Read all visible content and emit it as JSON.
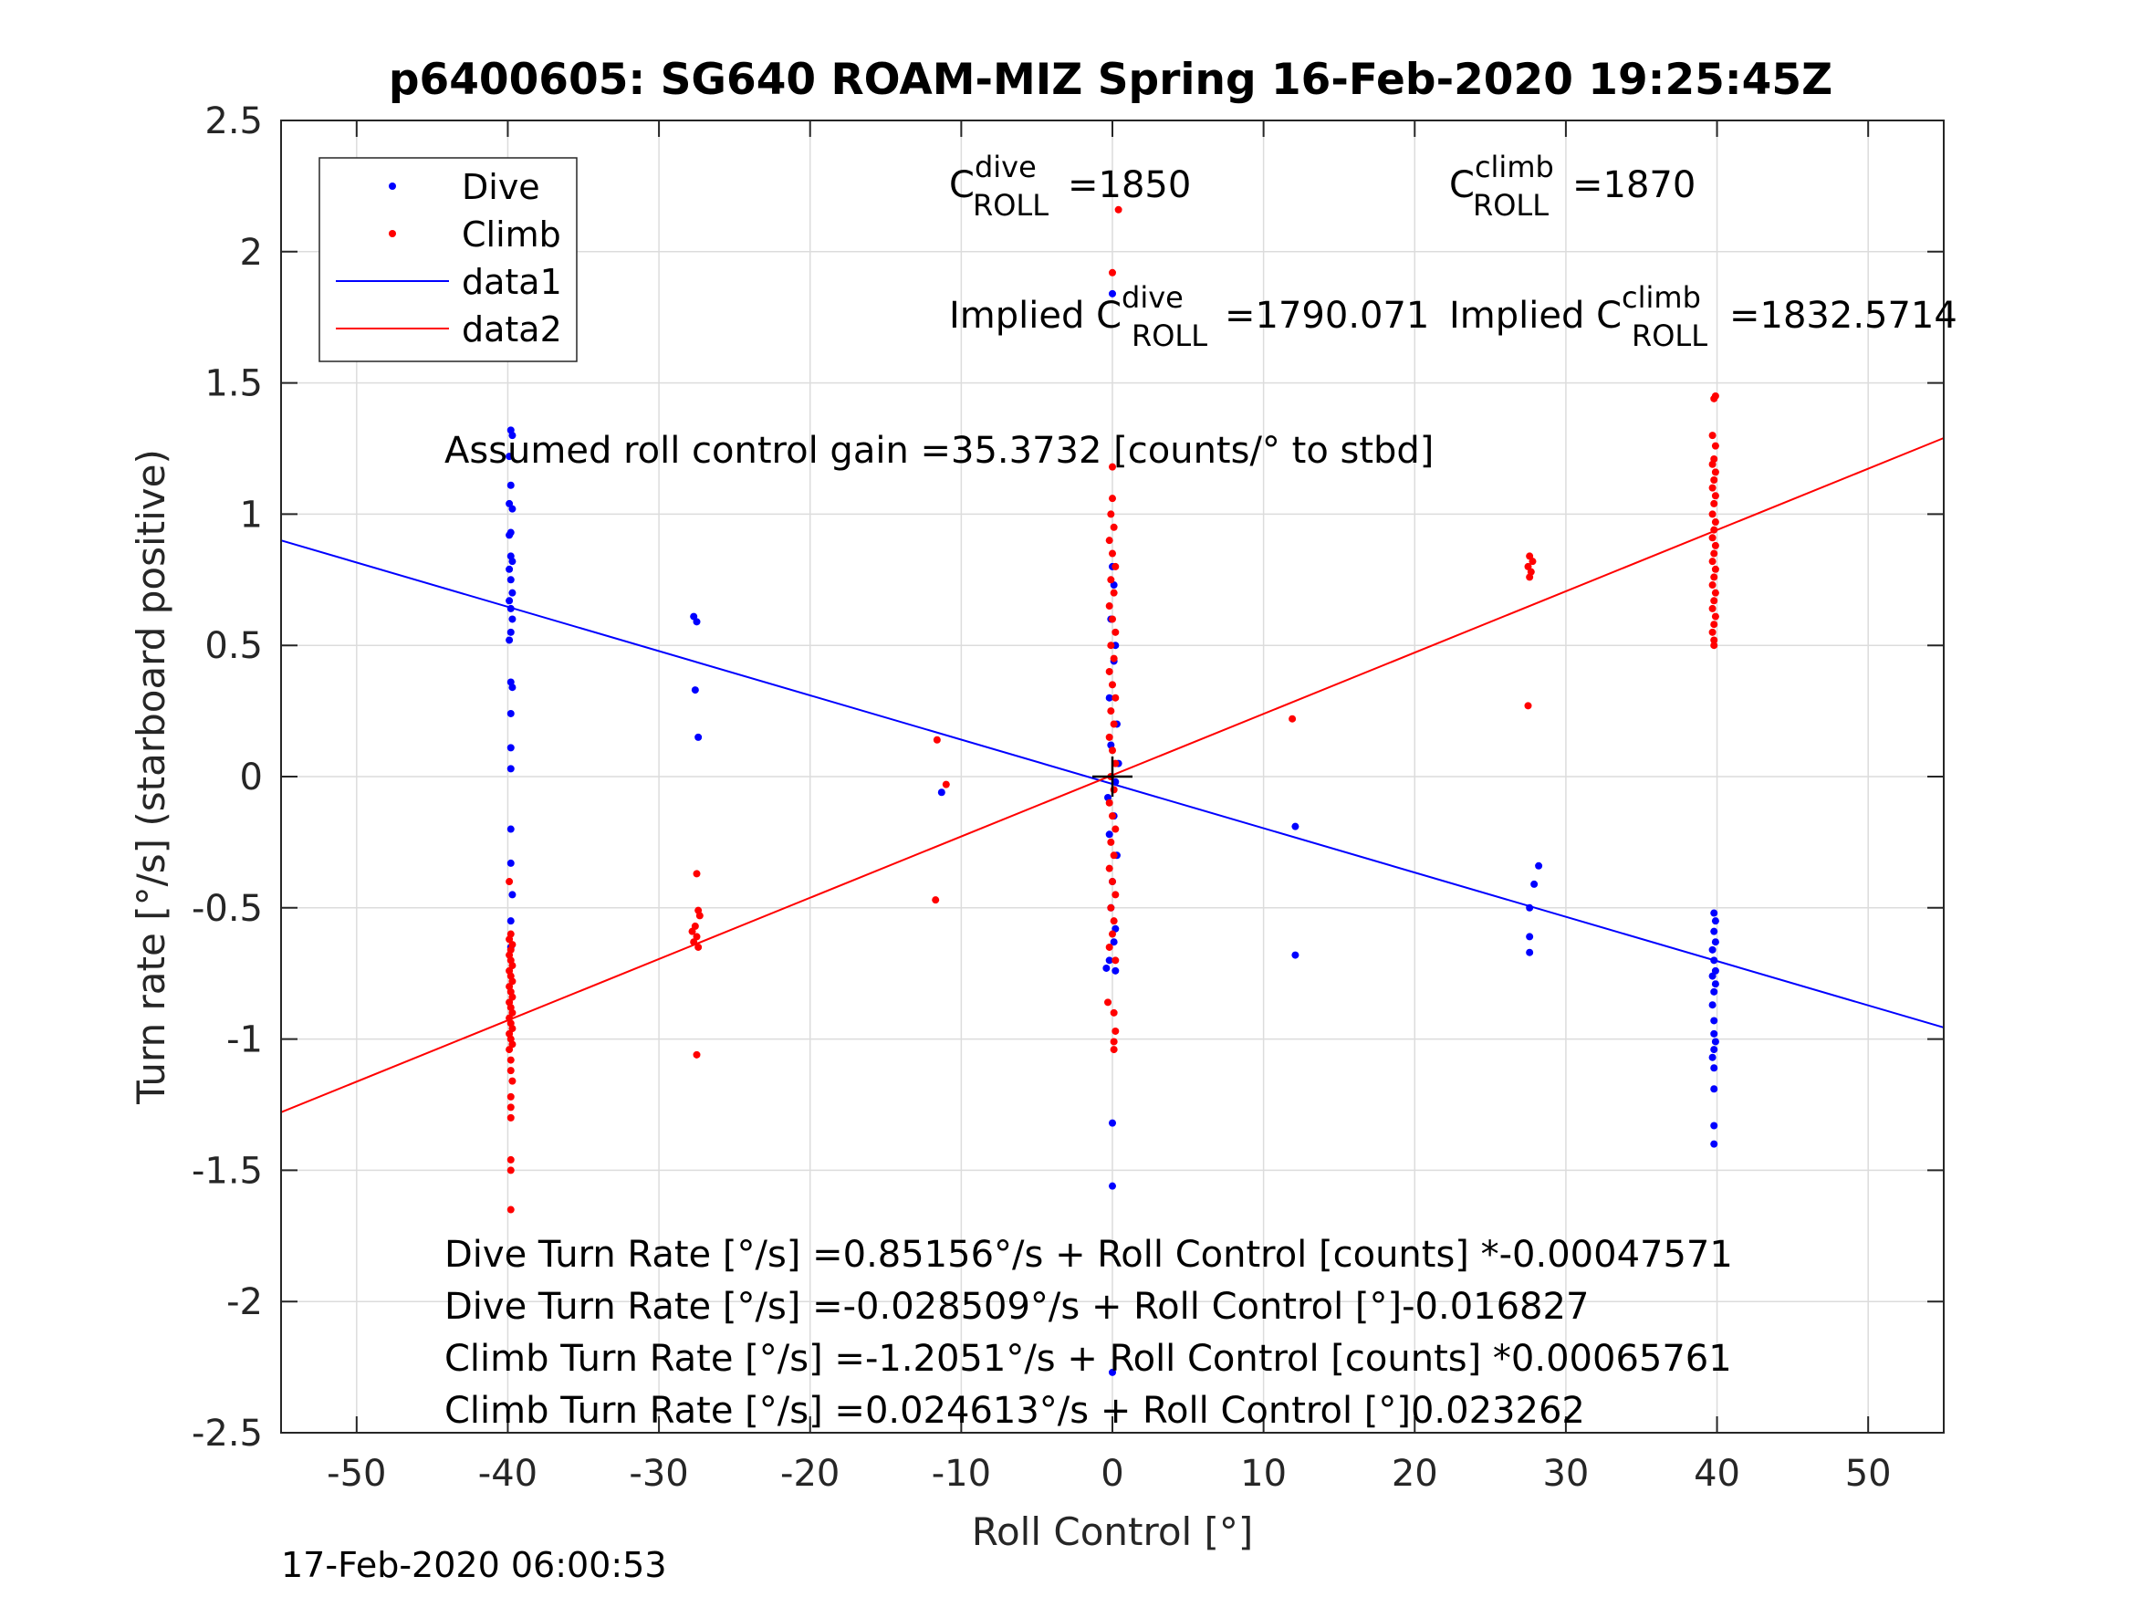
{
  "figure": {
    "title": "p6400605: SG640 ROAM-MIZ Spring 16-Feb-2020 19:25:45Z",
    "footer_timestamp": "17-Feb-2020 06:00:53"
  },
  "annotations": {
    "c_dive": {
      "prefix": "C",
      "sup": "dive",
      "sub": "ROLL",
      "value": "=1850"
    },
    "c_climb": {
      "prefix": "C",
      "sup": "climb",
      "sub": "ROLL",
      "value": "=1870"
    },
    "implied_dive": {
      "prefix": "Implied C",
      "sup": "dive",
      "sub": "ROLL",
      "value": "=1790.071"
    },
    "implied_climb": {
      "prefix": "Implied C",
      "sup": "climb",
      "sub": "ROLL",
      "value": "=1832.5714"
    },
    "gain": "Assumed roll control gain =35.3732 [counts/° to stbd]",
    "eq_lines": [
      "Dive Turn Rate [°/s] =0.85156°/s + Roll Control [counts] *-0.00047571",
      "Dive Turn Rate [°/s] =-0.028509°/s + Roll Control [°]-0.016827",
      "Climb Turn Rate [°/s] =-1.2051°/s + Roll Control [counts] *0.00065761",
      "Climb Turn Rate [°/s] =0.024613°/s + Roll Control [°]0.023262"
    ]
  },
  "chart_data": {
    "type": "scatter",
    "title": "p6400605: SG640 ROAM-MIZ Spring 16-Feb-2020 19:25:45Z",
    "xlabel": "Roll Control [°]",
    "ylabel": "Turn rate [°/s] (starboard positive)",
    "xlim": [
      -55,
      55
    ],
    "ylim": [
      -2.5,
      2.5
    ],
    "xticks": [
      -50,
      -40,
      -30,
      -20,
      -10,
      0,
      10,
      20,
      30,
      40,
      50
    ],
    "xtick_labels": [
      "-50",
      "-40",
      "-30",
      "-20",
      "-10",
      "0",
      "10",
      "20",
      "30",
      "40",
      "50"
    ],
    "yticks": [
      -2.5,
      -2,
      -1.5,
      -1,
      -0.5,
      0,
      0.5,
      1,
      1.5,
      2,
      2.5
    ],
    "ytick_labels": [
      "-2.5",
      "-2",
      "-1.5",
      "-1",
      "-0.5",
      "0",
      "0.5",
      "1",
      "1.5",
      "2",
      "2.5"
    ],
    "grid": true,
    "legend": {
      "placement": "top-left",
      "entries": [
        "Dive",
        "Climb",
        "data1",
        "data2"
      ]
    },
    "colors": {
      "dive": "#0000ff",
      "climb": "#ff0000",
      "axis": "#262626",
      "grid": "#dcdcdc",
      "marker": "#000000"
    },
    "series": [
      {
        "name": "Dive",
        "kind": "points",
        "points": [
          [
            -39.8,
            1.32
          ],
          [
            -39.7,
            1.3
          ],
          [
            -39.9,
            1.22
          ],
          [
            -39.8,
            1.11
          ],
          [
            -39.9,
            1.04
          ],
          [
            -39.7,
            1.02
          ],
          [
            -39.8,
            0.93
          ],
          [
            -39.9,
            0.92
          ],
          [
            -39.8,
            0.84
          ],
          [
            -39.7,
            0.82
          ],
          [
            -39.9,
            0.79
          ],
          [
            -39.8,
            0.75
          ],
          [
            -39.7,
            0.7
          ],
          [
            -39.9,
            0.67
          ],
          [
            -39.8,
            0.64
          ],
          [
            -39.7,
            0.6
          ],
          [
            -39.8,
            0.55
          ],
          [
            -39.9,
            0.52
          ],
          [
            -39.8,
            0.36
          ],
          [
            -39.7,
            0.34
          ],
          [
            -39.8,
            0.24
          ],
          [
            -39.8,
            0.11
          ],
          [
            -39.8,
            0.03
          ],
          [
            -39.8,
            -0.2
          ],
          [
            -39.8,
            -0.33
          ],
          [
            -39.7,
            -0.45
          ],
          [
            -39.8,
            -0.55
          ],
          [
            -39.8,
            -0.65
          ],
          [
            -27.7,
            0.61
          ],
          [
            -27.5,
            0.59
          ],
          [
            -27.6,
            0.33
          ],
          [
            -27.4,
            0.15
          ],
          [
            -11.3,
            -0.06
          ],
          [
            0.0,
            1.84
          ],
          [
            0.0,
            0.8
          ],
          [
            0.1,
            0.73
          ],
          [
            -0.1,
            0.6
          ],
          [
            0.2,
            0.5
          ],
          [
            0.1,
            0.44
          ],
          [
            -0.2,
            0.3
          ],
          [
            0.3,
            0.2
          ],
          [
            -0.1,
            0.12
          ],
          [
            0.4,
            0.05
          ],
          [
            0.2,
            -0.02
          ],
          [
            -0.3,
            -0.08
          ],
          [
            0.1,
            -0.15
          ],
          [
            -0.2,
            -0.22
          ],
          [
            0.3,
            -0.3
          ],
          [
            0.0,
            -0.4
          ],
          [
            -0.1,
            -0.5
          ],
          [
            0.2,
            -0.58
          ],
          [
            0.1,
            -0.63
          ],
          [
            -0.2,
            -0.7
          ],
          [
            0.2,
            -0.74
          ],
          [
            -0.4,
            -0.73
          ],
          [
            0.0,
            -1.32
          ],
          [
            0.0,
            -1.56
          ],
          [
            0.0,
            -2.27
          ],
          [
            12.1,
            -0.19
          ],
          [
            12.1,
            -0.68
          ],
          [
            28.2,
            -0.34
          ],
          [
            27.9,
            -0.41
          ],
          [
            27.6,
            -0.5
          ],
          [
            27.6,
            -0.61
          ],
          [
            27.6,
            -0.67
          ],
          [
            39.8,
            -0.52
          ],
          [
            39.9,
            -0.55
          ],
          [
            39.8,
            -0.59
          ],
          [
            39.9,
            -0.63
          ],
          [
            39.7,
            -0.66
          ],
          [
            39.8,
            -0.7
          ],
          [
            39.9,
            -0.74
          ],
          [
            39.7,
            -0.76
          ],
          [
            39.9,
            -0.79
          ],
          [
            39.8,
            -0.82
          ],
          [
            39.7,
            -0.87
          ],
          [
            39.8,
            -0.93
          ],
          [
            39.8,
            -0.98
          ],
          [
            39.9,
            -1.01
          ],
          [
            39.8,
            -1.04
          ],
          [
            39.7,
            -1.07
          ],
          [
            39.8,
            -1.11
          ],
          [
            39.8,
            -1.19
          ],
          [
            39.8,
            -1.33
          ],
          [
            39.8,
            -1.4
          ]
        ]
      },
      {
        "name": "Climb",
        "kind": "points",
        "points": [
          [
            -39.8,
            -0.6
          ],
          [
            -39.9,
            -0.62
          ],
          [
            -39.7,
            -0.64
          ],
          [
            -39.8,
            -0.66
          ],
          [
            -39.9,
            -0.68
          ],
          [
            -39.8,
            -0.7
          ],
          [
            -39.7,
            -0.72
          ],
          [
            -39.9,
            -0.74
          ],
          [
            -39.8,
            -0.76
          ],
          [
            -39.7,
            -0.78
          ],
          [
            -39.9,
            -0.8
          ],
          [
            -39.8,
            -0.82
          ],
          [
            -39.7,
            -0.84
          ],
          [
            -39.9,
            -0.86
          ],
          [
            -39.8,
            -0.88
          ],
          [
            -39.7,
            -0.9
          ],
          [
            -39.9,
            -0.92
          ],
          [
            -39.8,
            -0.94
          ],
          [
            -39.7,
            -0.96
          ],
          [
            -39.9,
            -0.98
          ],
          [
            -39.8,
            -1.0
          ],
          [
            -39.7,
            -1.02
          ],
          [
            -39.9,
            -1.04
          ],
          [
            -39.8,
            -1.08
          ],
          [
            -39.8,
            -1.12
          ],
          [
            -39.7,
            -1.16
          ],
          [
            -39.8,
            -1.22
          ],
          [
            -39.8,
            -1.26
          ],
          [
            -39.8,
            -1.3
          ],
          [
            -39.8,
            -1.46
          ],
          [
            -39.8,
            -1.5
          ],
          [
            -39.8,
            -1.65
          ],
          [
            -39.9,
            -0.4
          ],
          [
            -27.5,
            -0.37
          ],
          [
            -27.4,
            -0.51
          ],
          [
            -27.3,
            -0.53
          ],
          [
            -27.6,
            -0.57
          ],
          [
            -27.8,
            -0.59
          ],
          [
            -27.5,
            -0.61
          ],
          [
            -27.7,
            -0.63
          ],
          [
            -27.4,
            -0.65
          ],
          [
            -27.5,
            -1.06
          ],
          [
            -11.6,
            0.14
          ],
          [
            -11.7,
            -0.47
          ],
          [
            -11.0,
            -0.03
          ],
          [
            0.4,
            2.16
          ],
          [
            0.0,
            1.92
          ],
          [
            0.0,
            1.18
          ],
          [
            0.0,
            1.06
          ],
          [
            -0.1,
            1.0
          ],
          [
            0.1,
            0.95
          ],
          [
            -0.2,
            0.9
          ],
          [
            0.0,
            0.85
          ],
          [
            0.2,
            0.8
          ],
          [
            -0.1,
            0.75
          ],
          [
            0.1,
            0.7
          ],
          [
            -0.2,
            0.65
          ],
          [
            0.0,
            0.6
          ],
          [
            0.2,
            0.55
          ],
          [
            -0.1,
            0.5
          ],
          [
            0.1,
            0.45
          ],
          [
            -0.2,
            0.4
          ],
          [
            0.0,
            0.35
          ],
          [
            0.2,
            0.3
          ],
          [
            -0.1,
            0.25
          ],
          [
            0.1,
            0.2
          ],
          [
            -0.2,
            0.15
          ],
          [
            0.0,
            0.1
          ],
          [
            0.2,
            0.05
          ],
          [
            -0.1,
            0.0
          ],
          [
            0.1,
            -0.05
          ],
          [
            -0.2,
            -0.1
          ],
          [
            0.0,
            -0.15
          ],
          [
            0.2,
            -0.2
          ],
          [
            -0.1,
            -0.25
          ],
          [
            0.1,
            -0.3
          ],
          [
            -0.2,
            -0.35
          ],
          [
            0.0,
            -0.4
          ],
          [
            0.2,
            -0.45
          ],
          [
            -0.1,
            -0.5
          ],
          [
            0.1,
            -0.55
          ],
          [
            0.0,
            -0.6
          ],
          [
            -0.2,
            -0.65
          ],
          [
            0.2,
            -0.7
          ],
          [
            -0.3,
            -0.86
          ],
          [
            0.1,
            -0.9
          ],
          [
            0.2,
            -0.97
          ],
          [
            0.1,
            -1.01
          ],
          [
            0.1,
            -1.04
          ],
          [
            11.9,
            0.22
          ],
          [
            27.6,
            0.84
          ],
          [
            27.8,
            0.82
          ],
          [
            27.5,
            0.8
          ],
          [
            27.7,
            0.78
          ],
          [
            27.6,
            0.76
          ],
          [
            27.5,
            0.27
          ],
          [
            39.9,
            1.45
          ],
          [
            39.8,
            1.44
          ],
          [
            39.7,
            1.3
          ],
          [
            39.9,
            1.26
          ],
          [
            39.8,
            1.21
          ],
          [
            39.7,
            1.19
          ],
          [
            39.9,
            1.16
          ],
          [
            39.8,
            1.13
          ],
          [
            39.7,
            1.1
          ],
          [
            39.9,
            1.07
          ],
          [
            39.8,
            1.04
          ],
          [
            39.7,
            1.0
          ],
          [
            39.9,
            0.97
          ],
          [
            39.8,
            0.94
          ],
          [
            39.7,
            0.91
          ],
          [
            39.9,
            0.88
          ],
          [
            39.8,
            0.85
          ],
          [
            39.7,
            0.82
          ],
          [
            39.9,
            0.79
          ],
          [
            39.8,
            0.76
          ],
          [
            39.7,
            0.73
          ],
          [
            39.9,
            0.7
          ],
          [
            39.8,
            0.67
          ],
          [
            39.7,
            0.64
          ],
          [
            39.9,
            0.61
          ],
          [
            39.8,
            0.58
          ],
          [
            39.7,
            0.55
          ],
          [
            39.8,
            0.52
          ],
          [
            39.8,
            0.5
          ]
        ]
      },
      {
        "name": "data1",
        "kind": "line",
        "points": [
          [
            -55,
            0.9
          ],
          [
            55,
            -0.956
          ]
        ]
      },
      {
        "name": "data2",
        "kind": "line",
        "points": [
          [
            -55,
            -1.279
          ],
          [
            55,
            1.29
          ]
        ]
      },
      {
        "kind": "marker",
        "points": [
          [
            0,
            0
          ]
        ]
      }
    ]
  }
}
